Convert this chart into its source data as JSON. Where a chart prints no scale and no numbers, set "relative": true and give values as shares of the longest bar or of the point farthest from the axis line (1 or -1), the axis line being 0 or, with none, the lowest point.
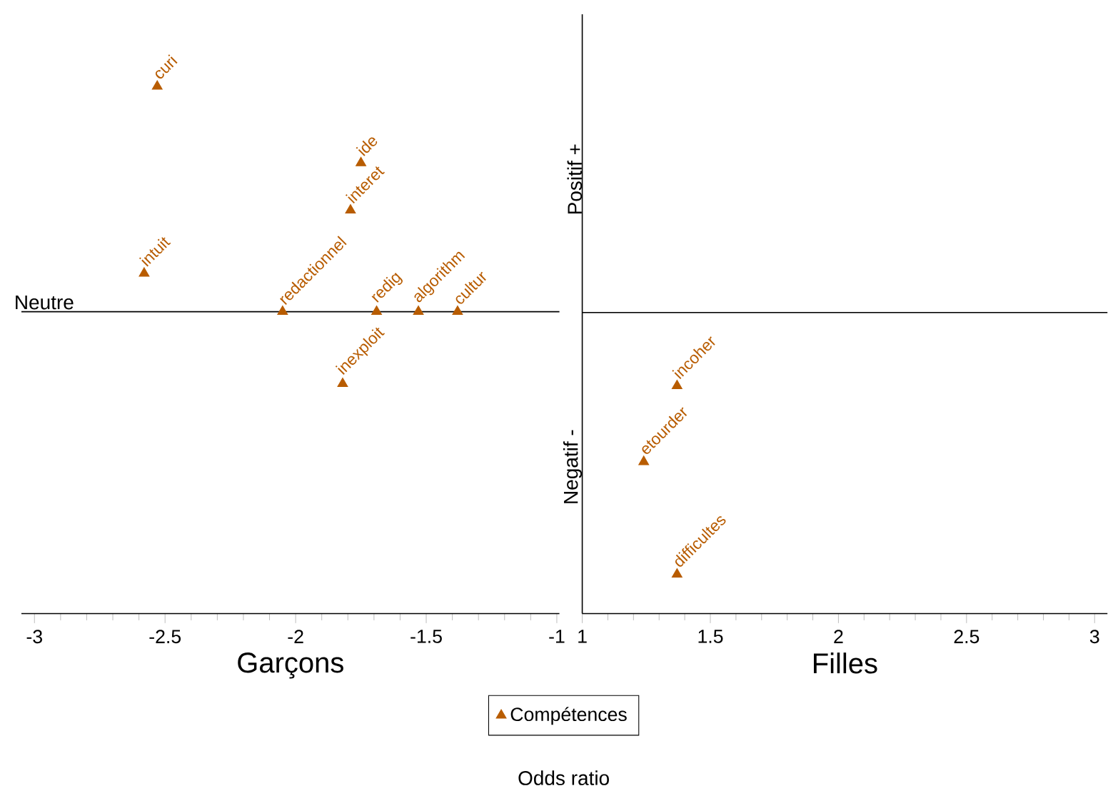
{
  "chart_data": [
    {
      "type": "scatter",
      "relative": true,
      "xlabel": "Garçons",
      "xlim": [
        -3.05,
        -0.99
      ],
      "xticks": [
        -3,
        -2.5,
        -2,
        -1.5,
        -1
      ],
      "marker": "triangle",
      "legend": "bottom",
      "x": [
        -2.53,
        -1.75,
        -1.79,
        -2.58,
        -2.05,
        -1.69,
        -1.53,
        -1.38,
        -1.82
      ],
      "series": [
        {
          "name": "Compétences",
          "color": "#b85c00",
          "values": [
            1,
            0.66,
            0.45,
            0.17,
            0,
            0,
            0,
            0,
            -0.32
          ]
        }
      ],
      "annotations": [
        {
          "text": "curi",
          "x": -2.53,
          "y": 1
        },
        {
          "text": "ide",
          "x": -1.75,
          "y": 0.66
        },
        {
          "text": "interet",
          "x": -1.79,
          "y": 0.45
        },
        {
          "text": "intuit",
          "x": -2.58,
          "y": 0.17
        },
        {
          "text": "redactionnel",
          "x": -2.05,
          "y": 0
        },
        {
          "text": "redig",
          "x": -1.69,
          "y": 0
        },
        {
          "text": "algorithm",
          "x": -1.53,
          "y": 0
        },
        {
          "text": "cultur",
          "x": -1.38,
          "y": 0
        },
        {
          "text": "inexploit",
          "x": -1.82,
          "y": -0.32
        },
        "Neutre",
        "Odds ratio"
      ]
    },
    {
      "type": "scatter",
      "relative": true,
      "xlabel": "Filles",
      "xlim": [
        1,
        3.05
      ],
      "xticks": [
        1,
        1.5,
        2,
        2.5,
        3
      ],
      "marker": "triangle",
      "x": [
        1.37,
        1.24,
        1.37
      ],
      "series": [
        {
          "color": "#b85c00",
          "values": [
            -0.28,
            -0.57,
            -1
          ]
        }
      ],
      "annotations": [
        {
          "text": "incoher",
          "x": 1.37,
          "y": -0.28
        },
        {
          "text": "etourder",
          "x": 1.24,
          "y": -0.57
        },
        {
          "text": "difficultes",
          "x": 1.37,
          "y": -1
        },
        "Positif +",
        "Negatif -"
      ]
    }
  ]
}
